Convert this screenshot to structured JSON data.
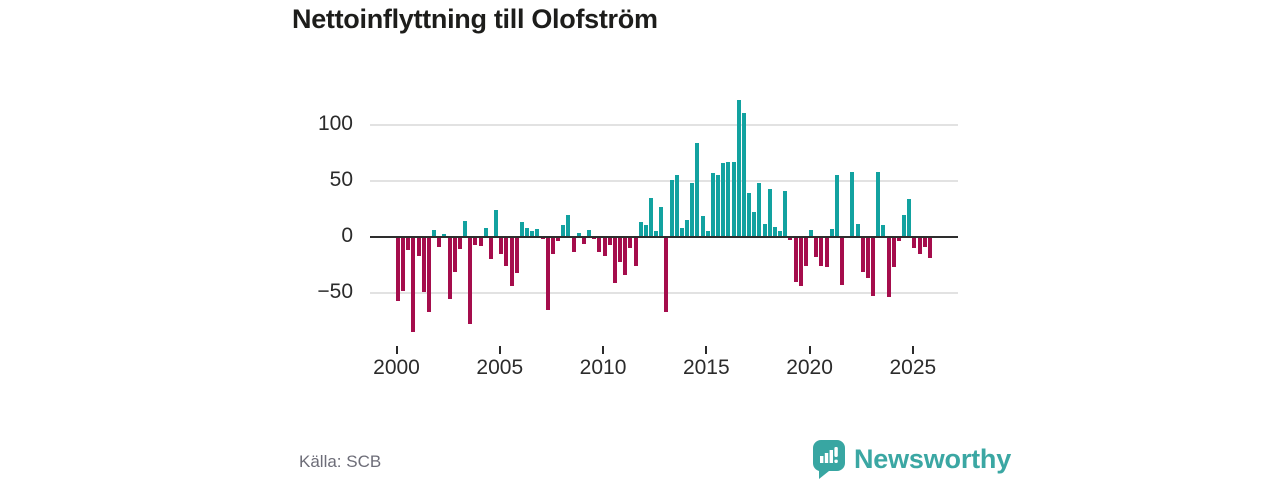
{
  "header": {
    "title": "Nettoinflyttning till Olofström"
  },
  "footer": {
    "source": "Källa: SCB",
    "brand": "Newsworthy"
  },
  "colors": {
    "positive": "#12a2a0",
    "negative": "#a50d4c",
    "brand_teal": "#3ba7a3",
    "title_text": "#1d1d1b",
    "axis_text": "#2b2b2b",
    "gridline": "#e2e2e2",
    "zero_line": "#2e2e2e",
    "source_text": "#6d6d78"
  },
  "chart_data": {
    "type": "bar",
    "title": "Nettoinflyttning till Olofström",
    "frequency": "quarterly",
    "start_year": 2000,
    "x_ticks": [
      2000,
      2005,
      2010,
      2015,
      2020,
      2025
    ],
    "y_ticks": [
      100,
      50,
      0,
      -50
    ],
    "y_tick_labels": [
      "100",
      "50",
      "0",
      "−50"
    ],
    "ylim": [
      -90,
      131
    ],
    "grid": true,
    "legend": false,
    "values": [
      -57,
      -48,
      -12,
      -85,
      -17,
      -49,
      -67,
      6,
      -9,
      3,
      -55,
      -31,
      -11,
      14,
      -78,
      -7,
      -8,
      8,
      -20,
      24,
      -15,
      -26,
      -44,
      -32,
      13,
      8,
      5,
      7,
      -2,
      -65,
      -15,
      -4,
      11,
      20,
      -13,
      4,
      -6,
      6,
      -2,
      -13,
      -17,
      -7,
      -41,
      -22,
      -34,
      -10,
      -26,
      13,
      11,
      35,
      5,
      27,
      -67,
      51,
      55,
      8,
      15,
      48,
      84,
      19,
      5,
      57,
      55,
      66,
      67,
      67,
      122,
      111,
      39,
      22,
      48,
      12,
      43,
      9,
      5,
      41,
      -3,
      -40,
      -44,
      -26,
      6,
      -18,
      -26,
      -27,
      7,
      55,
      -43,
      0,
      58,
      12,
      -31,
      -37,
      -53,
      58,
      11,
      -54,
      -27,
      -4,
      20,
      34,
      -10,
      -15,
      -9,
      -19
    ]
  }
}
